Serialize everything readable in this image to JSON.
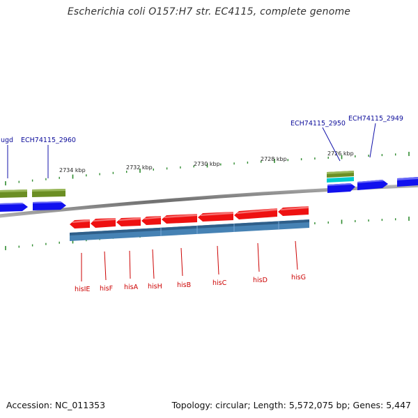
{
  "title": "Escherichia coli O157:H7 str. EC4115, complete genome",
  "footer": {
    "accession": "Accession: NC_011353",
    "summary": "Topology: circular; Length: 5,572,075 bp; Genes: 5,447"
  },
  "colors": {
    "backbone": "#8a8a8a",
    "tick": "#2e8b2e",
    "red_gene": "#ee1111",
    "blue_gene": "#1111ee",
    "green_block": "#6b8e23",
    "steelblue_block": "#4682b4",
    "cyan_block": "#00cccc",
    "label_red": "#cc0000",
    "label_blue": "#0b0b9a"
  },
  "scale_labels": [
    "2734 kbp",
    "2732 kbp",
    "2730 kbp",
    "2728 kbp",
    "2726 kbp"
  ],
  "top_gene_labels": [
    "ugd",
    "ECH74115_2960",
    "ECH74115_2950",
    "ECH74115_2949"
  ],
  "bottom_gene_labels": [
    "hisIE",
    "hisF",
    "hisA",
    "hisH",
    "hisB",
    "hisC",
    "hisD",
    "hisG"
  ]
}
